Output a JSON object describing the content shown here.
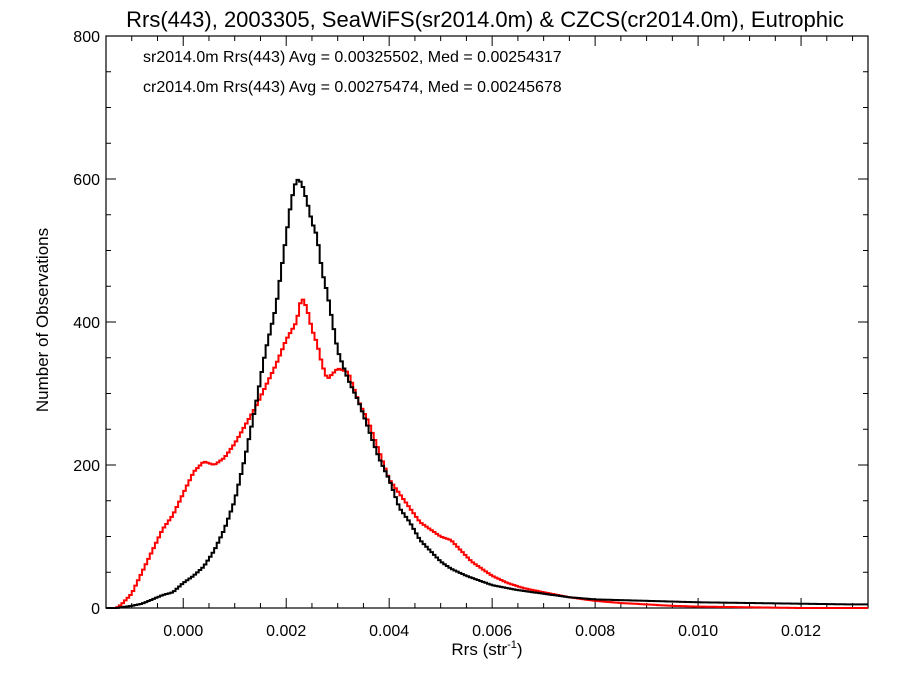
{
  "chart_data": {
    "type": "line",
    "title": "Rrs(443), 2003305, SeaWiFS(sr2014.0m) & CZCS(cr2014.0m), Eutrophic",
    "xlabel_base": "Rrs (str",
    "xlabel_sup": "-1",
    "xlabel_close": ")",
    "ylabel": "Number of Observations",
    "xlim": [
      -0.0015,
      0.0133
    ],
    "ylim": [
      0,
      800
    ],
    "xticks": [
      0.0,
      0.002,
      0.004,
      0.006,
      0.008,
      0.01,
      0.012
    ],
    "xtick_labels": [
      "0.000",
      "0.002",
      "0.004",
      "0.006",
      "0.008",
      "0.010",
      "0.012"
    ],
    "yticks": [
      0,
      200,
      400,
      600,
      800
    ],
    "ytick_labels": [
      "0",
      "200",
      "400",
      "600",
      "800"
    ],
    "grid": false,
    "legend_position": "top-left",
    "series": [
      {
        "name": "sr2014.0m Rrs(443) Avg = 0.00325502, Med = 0.00254317",
        "color": "#000000",
        "points": [
          [
            -0.0015,
            0
          ],
          [
            -0.0013,
            0
          ],
          [
            -0.0011,
            2
          ],
          [
            -0.001,
            3
          ],
          [
            -0.0008,
            6
          ],
          [
            -0.0006,
            12
          ],
          [
            -0.0004,
            18
          ],
          [
            -0.0002,
            22
          ],
          [
            0.0,
            35
          ],
          [
            0.0002,
            45
          ],
          [
            0.0004,
            58
          ],
          [
            0.0006,
            80
          ],
          [
            0.0008,
            110
          ],
          [
            0.001,
            150
          ],
          [
            0.0012,
            210
          ],
          [
            0.0014,
            280
          ],
          [
            0.0016,
            360
          ],
          [
            0.0018,
            420
          ],
          [
            0.0019,
            470
          ],
          [
            0.002,
            520
          ],
          [
            0.0021,
            570
          ],
          [
            0.0022,
            600
          ],
          [
            0.0023,
            595
          ],
          [
            0.0024,
            570
          ],
          [
            0.0025,
            540
          ],
          [
            0.0026,
            520
          ],
          [
            0.0027,
            470
          ],
          [
            0.0028,
            440
          ],
          [
            0.0029,
            400
          ],
          [
            0.003,
            360
          ],
          [
            0.0032,
            320
          ],
          [
            0.0034,
            290
          ],
          [
            0.0036,
            250
          ],
          [
            0.0038,
            210
          ],
          [
            0.004,
            180
          ],
          [
            0.0042,
            140
          ],
          [
            0.0044,
            120
          ],
          [
            0.0046,
            95
          ],
          [
            0.0048,
            80
          ],
          [
            0.005,
            65
          ],
          [
            0.0052,
            55
          ],
          [
            0.0055,
            45
          ],
          [
            0.006,
            32
          ],
          [
            0.0065,
            25
          ],
          [
            0.007,
            20
          ],
          [
            0.0075,
            15
          ],
          [
            0.008,
            12
          ],
          [
            0.0085,
            11
          ],
          [
            0.009,
            10
          ],
          [
            0.0095,
            9
          ],
          [
            0.01,
            8
          ],
          [
            0.011,
            7
          ],
          [
            0.012,
            6
          ],
          [
            0.013,
            5
          ],
          [
            0.0133,
            5
          ]
        ]
      },
      {
        "name": "cr2014.0m Rrs(443) Avg = 0.00275474, Med = 0.00245678",
        "color": "#ff0000",
        "points": [
          [
            -0.0015,
            0
          ],
          [
            -0.0013,
            0
          ],
          [
            -0.0012,
            5
          ],
          [
            -0.001,
            20
          ],
          [
            -0.0008,
            50
          ],
          [
            -0.0006,
            80
          ],
          [
            -0.0004,
            110
          ],
          [
            -0.0002,
            130
          ],
          [
            0.0,
            160
          ],
          [
            0.0002,
            190
          ],
          [
            0.0004,
            205
          ],
          [
            0.0006,
            200
          ],
          [
            0.0008,
            210
          ],
          [
            0.001,
            230
          ],
          [
            0.0012,
            255
          ],
          [
            0.0014,
            280
          ],
          [
            0.0016,
            310
          ],
          [
            0.0018,
            340
          ],
          [
            0.002,
            375
          ],
          [
            0.0022,
            400
          ],
          [
            0.0023,
            435
          ],
          [
            0.0024,
            420
          ],
          [
            0.0025,
            390
          ],
          [
            0.0026,
            370
          ],
          [
            0.0027,
            340
          ],
          [
            0.0028,
            320
          ],
          [
            0.003,
            335
          ],
          [
            0.0032,
            330
          ],
          [
            0.0034,
            290
          ],
          [
            0.0036,
            260
          ],
          [
            0.0038,
            220
          ],
          [
            0.004,
            180
          ],
          [
            0.0042,
            160
          ],
          [
            0.0044,
            140
          ],
          [
            0.0046,
            120
          ],
          [
            0.0048,
            110
          ],
          [
            0.005,
            100
          ],
          [
            0.0052,
            95
          ],
          [
            0.0054,
            80
          ],
          [
            0.0056,
            65
          ],
          [
            0.0058,
            55
          ],
          [
            0.006,
            45
          ],
          [
            0.0063,
            35
          ],
          [
            0.0066,
            28
          ],
          [
            0.007,
            22
          ],
          [
            0.0075,
            15
          ],
          [
            0.008,
            10
          ],
          [
            0.0085,
            7
          ],
          [
            0.009,
            5
          ],
          [
            0.0095,
            3
          ],
          [
            0.01,
            2
          ],
          [
            0.011,
            1
          ],
          [
            0.012,
            0
          ],
          [
            0.0133,
            0
          ]
        ]
      }
    ]
  }
}
